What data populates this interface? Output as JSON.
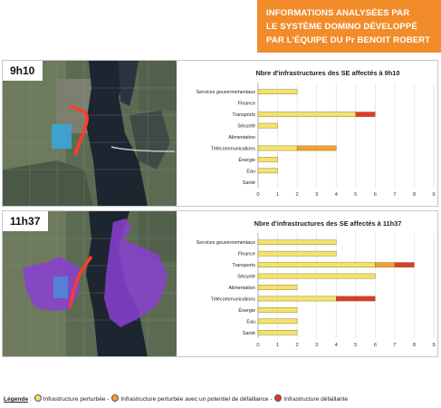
{
  "banner": {
    "lines": [
      "INFORMATIONS ANALYSÉES PAR",
      "LE SYSTÈME DOMINO DÉVELOPPÉ",
      "PAR L'ÉQUIPE DU Pr BENOIT ROBERT"
    ]
  },
  "panels": [
    {
      "time": "9h10"
    },
    {
      "time": "11h37"
    }
  ],
  "colors": {
    "perturbee": "#f2e36b",
    "potentiel": "#f0a12e",
    "defaillante": "#e03a2a",
    "banner": "#f28c2b",
    "zone_9h10": "#36a9e1",
    "zone_11h37": "#8a3fd1"
  },
  "chart_data": [
    {
      "type": "bar",
      "orientation": "horizontal",
      "stacked": true,
      "title": "Nbre d'infrastructures des SE affectés à 9h10",
      "categories": [
        "Services gouvernementaux",
        "Finance",
        "Transports",
        "Sécurité",
        "Alimentation",
        "Télécommunications",
        "Énergie",
        "Eau",
        "Santé"
      ],
      "series": [
        {
          "name": "Infrastructure perturbée",
          "values": [
            2,
            0,
            5,
            1,
            0,
            2,
            1,
            1,
            0
          ]
        },
        {
          "name": "Infrastructure perturbée avec un potentiel de défaillance",
          "values": [
            0,
            0,
            0,
            0,
            0,
            2,
            0,
            0,
            0
          ]
        },
        {
          "name": "Infrastructure défaillante",
          "values": [
            0,
            0,
            1,
            0,
            0,
            0,
            0,
            0,
            0
          ]
        }
      ],
      "xlim": [
        0,
        9
      ],
      "xticks": [
        "0",
        "1",
        "2",
        "3",
        "4",
        "5",
        "6",
        "7",
        "8",
        "9"
      ],
      "grid": true
    },
    {
      "type": "bar",
      "orientation": "horizontal",
      "stacked": true,
      "title": "Nbre d'infrastructures des SE affectés à 11h37",
      "categories": [
        "Services gouvernementaux",
        "Finance",
        "Transports",
        "Sécurité",
        "Alimentation",
        "Télécommunications",
        "Énergie",
        "Eau",
        "Santé"
      ],
      "series": [
        {
          "name": "Infrastructure perturbée",
          "values": [
            4,
            4,
            6,
            6,
            2,
            4,
            2,
            2,
            2
          ]
        },
        {
          "name": "Infrastructure perturbée avec un potentiel de défaillance",
          "values": [
            0,
            0,
            1,
            0,
            0,
            0,
            0,
            0,
            0
          ]
        },
        {
          "name": "Infrastructure défaillante",
          "values": [
            0,
            0,
            1,
            0,
            0,
            2,
            0,
            0,
            0
          ]
        }
      ],
      "xlim": [
        0,
        9
      ],
      "xticks": [
        "0",
        "1",
        "2",
        "3",
        "4",
        "5",
        "6",
        "7",
        "8",
        "9"
      ],
      "grid": true
    }
  ],
  "legend": {
    "title": "Légende",
    "separator": ":",
    "items": [
      {
        "label": "Infrastructure perturbée",
        "color": "#f2e36b"
      },
      {
        "label": "Infrastructure perturbée avec un potentiel de défaillance",
        "color": "#f0a12e"
      },
      {
        "label": "Infrastructure défaillante",
        "color": "#e03a2a"
      }
    ],
    "dash": "-"
  }
}
